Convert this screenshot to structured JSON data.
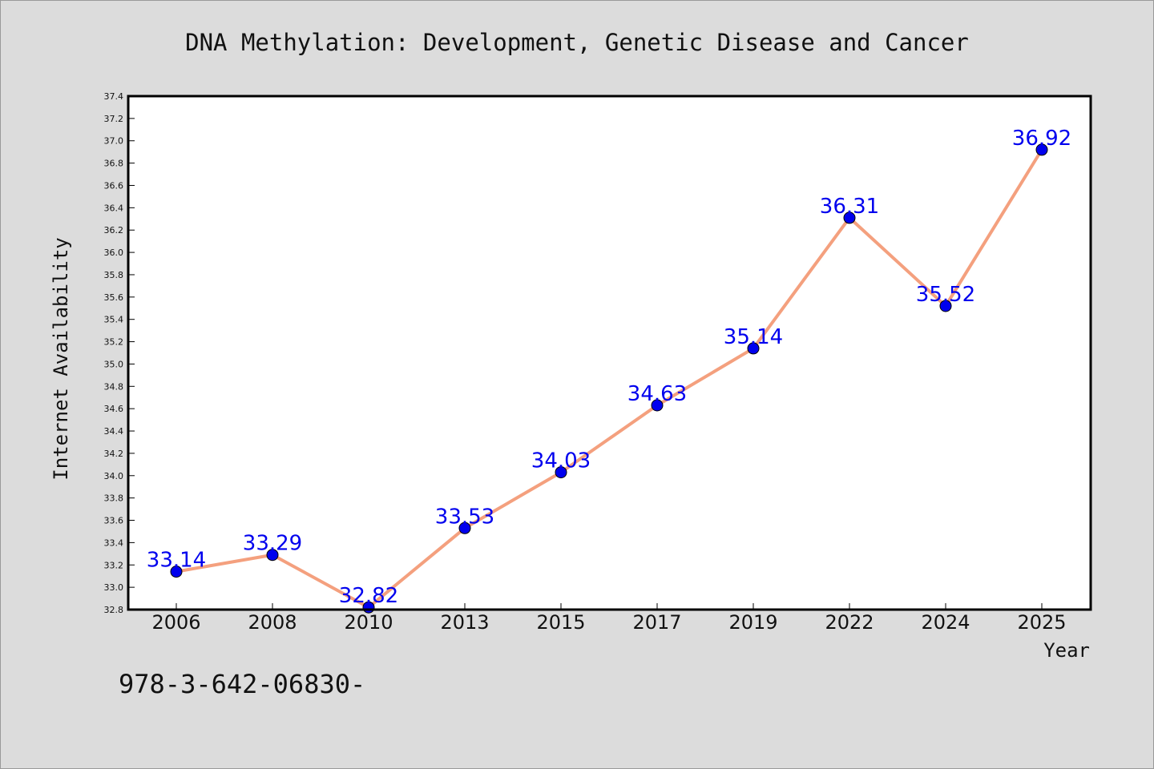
{
  "chart_data": {
    "type": "line",
    "title": "DNA Methylation: Development, Genetic Disease and Cancer",
    "xlabel": "Year",
    "ylabel": "Internet Availability",
    "categories": [
      "2006",
      "2008",
      "2010",
      "2013",
      "2015",
      "2017",
      "2019",
      "2022",
      "2024",
      "2025"
    ],
    "series": [
      {
        "values": [
          33.14,
          33.29,
          32.82,
          33.53,
          34.03,
          34.63,
          35.14,
          36.31,
          35.52,
          36.92
        ]
      }
    ],
    "data_labels": [
      "33.14",
      "33.29",
      "32.82",
      "33.53",
      "34.03",
      "34.63",
      "35.14",
      "36.31",
      "35.52",
      "36.92"
    ],
    "ylim": [
      32.8,
      37.4
    ],
    "yticks": [
      "32.8",
      "33.0",
      "33.2",
      "33.4",
      "33.6",
      "33.8",
      "34.0",
      "34.2",
      "34.4",
      "34.6",
      "34.8",
      "35.0",
      "35.2",
      "35.4",
      "35.6",
      "35.8",
      "36.0",
      "36.2",
      "36.4",
      "36.6",
      "36.8",
      "37.0",
      "37.2",
      "37.4"
    ],
    "grid": false,
    "legend": "none",
    "colors": {
      "line": "#f4a07e",
      "marker": "#0000ee",
      "label": "#0000ee",
      "background": "#dcdcdc",
      "plot_background": "#ffffff"
    }
  },
  "footer_text": "978-3-642-06830-"
}
